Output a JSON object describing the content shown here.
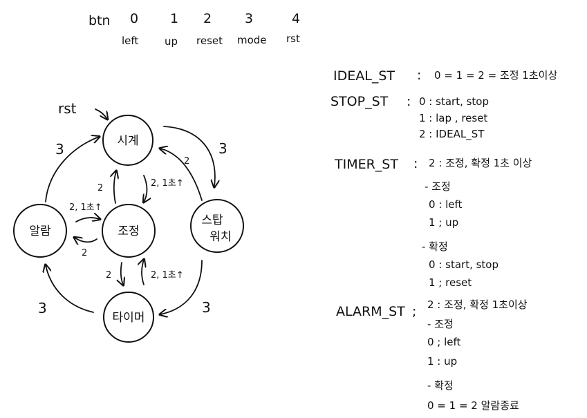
{
  "header": {
    "btn_label": "btn",
    "buttons": [
      {
        "num": "0",
        "name": "left"
      },
      {
        "num": "1",
        "name": "up"
      },
      {
        "num": "2",
        "name": "reset"
      },
      {
        "num": "3",
        "name": "mode"
      },
      {
        "num": "4",
        "name": "rst"
      }
    ]
  },
  "diagram": {
    "rst_label": "rst",
    "states": {
      "clock": "시계",
      "adjust": "조정",
      "stopwatch_line1": "스탑",
      "stopwatch_line2": "워치",
      "alarm": "알람",
      "timer": "타이머"
    },
    "edge_labels": {
      "clock_to_stopwatch": "3",
      "stopwatch_to_clock": "2",
      "clock_to_adjust": "2, 1초↑",
      "adjust_to_clock": "2",
      "alarm_to_clock": "3",
      "alarm_to_adjust": "2, 1초↑",
      "adjust_to_alarm": "2",
      "adjust_to_timer": "2",
      "timer_to_adjust": "2, 1초↑",
      "stopwatch_to_timer": "3",
      "timer_to_alarm": "3"
    }
  },
  "notes": {
    "ideal": {
      "key": "IDEAL_ST",
      "sep": ":",
      "text": "0 = 1 = 2 = 조정 1초이상"
    },
    "stop": {
      "key": "STOP_ST",
      "sep": ":",
      "lines": [
        "0 : start, stop",
        "1 : lap , reset",
        "2 : IDEAL_ST"
      ]
    },
    "timer": {
      "key": "TIMER_ST",
      "sep": ":",
      "header": "2 : 조정, 확정 1초 이상",
      "adjust_title": "- 조정",
      "adjust_lines": [
        "0 : left",
        "1 ; up"
      ],
      "confirm_title": "- 확정",
      "confirm_lines": [
        "0 : start, stop",
        "1 ; reset"
      ]
    },
    "alarm": {
      "key": "ALARM_ST",
      "sep": ";",
      "header": "2 : 조정, 확정 1초이상",
      "adjust_title": "- 조정",
      "adjust_lines": [
        "0 ; left",
        "1 : up"
      ],
      "confirm_title": "- 확정",
      "confirm_lines": [
        "0 = 1 = 2 알람종료"
      ]
    }
  }
}
